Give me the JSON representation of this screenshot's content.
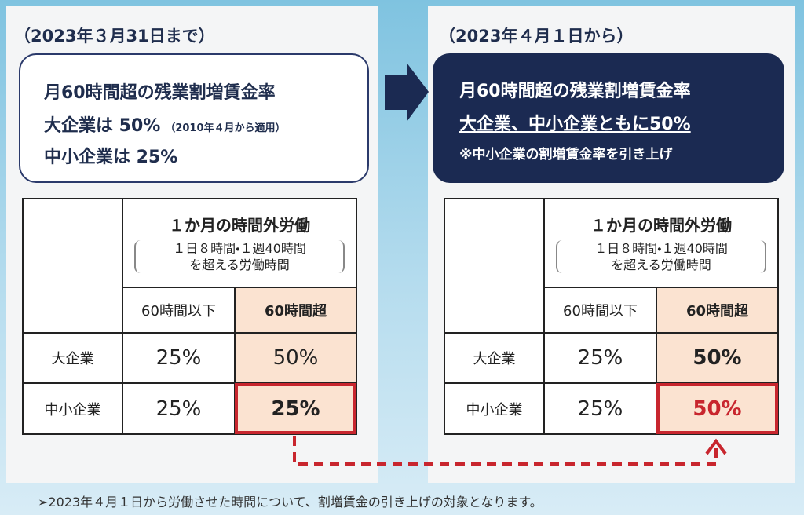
{
  "left": {
    "heading": "（2023年３月31日まで）",
    "summary": {
      "line1": "月60時間超の残業割増賃金率",
      "line2": "大企業は 50%",
      "line2_note": "（2010年４月から適用）",
      "line3": "中小企業は 25%"
    },
    "table": {
      "header": "１か月の時間外労働",
      "subheader1": "１日８時間・１週40時間",
      "subheader2": "を超える労働時間",
      "columns": [
        "60時間以下",
        "60時間超"
      ],
      "rows": [
        [
          "大企業",
          "25%",
          "50%"
        ],
        [
          "中小企業",
          "25%",
          "25%"
        ]
      ]
    }
  },
  "right": {
    "heading": "（2023年４月１日から）",
    "summary": {
      "line1": "月60時間超の残業割増賃金率",
      "line2": "大企業、中小企業ともに50%",
      "line3": "※中小企業の割増賃金率を引き上げ"
    },
    "table": {
      "header": "１か月の時間外労働",
      "subheader1": "１日８時間・１週40時間",
      "subheader2": "を超える労働時間",
      "columns": [
        "60時間以下",
        "60時間超"
      ],
      "rows": [
        [
          "大企業",
          "25%",
          "50%"
        ],
        [
          "中小企業",
          "25%",
          "50%"
        ]
      ]
    }
  },
  "footnote": "➢2023年４月１日から労働させた時間について、割増賃金の引き上げの対象となります。"
}
